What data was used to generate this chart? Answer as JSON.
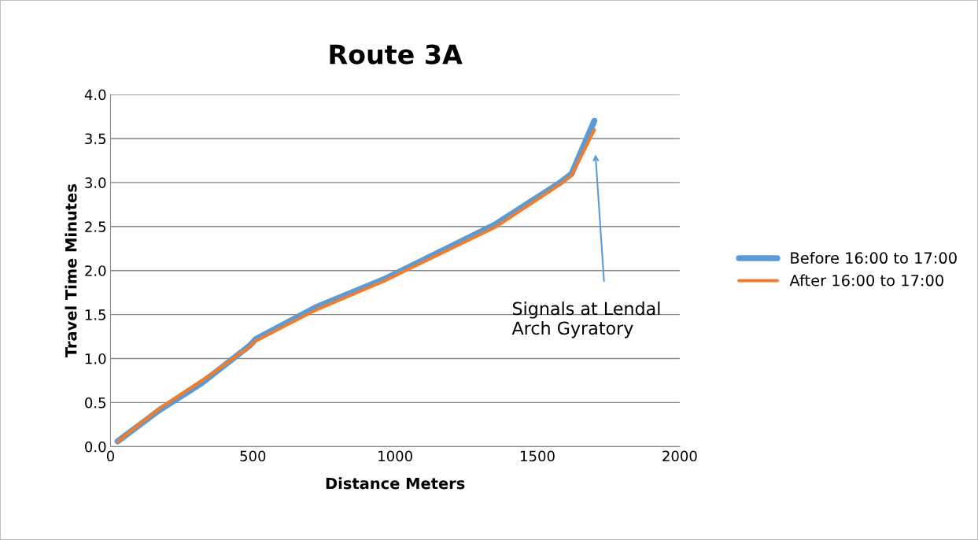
{
  "chart_data": {
    "type": "line",
    "title": "Route 3A",
    "xlabel": "Distance Meters",
    "ylabel": "Travel Time Minutes",
    "xlim": [
      0,
      2000
    ],
    "xticks": [
      0,
      500,
      1000,
      1500,
      2000
    ],
    "ylim": [
      0.0,
      4.0
    ],
    "yticks": [
      {
        "value": 0,
        "label": "0.0"
      },
      {
        "value": 0.5,
        "label": "0.5"
      },
      {
        "value": 1,
        "label": "1.0"
      },
      {
        "value": 1.5,
        "label": "1.5"
      },
      {
        "value": 2,
        "label": "2.0"
      },
      {
        "value": 2.5,
        "label": "2.5"
      },
      {
        "value": 3,
        "label": "3.0"
      },
      {
        "value": 3.5,
        "label": "3.5"
      },
      {
        "value": 4,
        "label": "4.0"
      }
    ],
    "grid": "y",
    "legend": "right",
    "marker": "none",
    "line_style": "solid",
    "series": [
      {
        "name": "Before 16:00 to 17:00",
        "color": "#5b9bd5",
        "x": [
          25,
          170,
          320,
          490,
          510,
          720,
          960,
          1350,
          1580,
          1620,
          1700
        ],
        "values": [
          0.06,
          0.41,
          0.72,
          1.15,
          1.22,
          1.58,
          1.9,
          2.52,
          3.0,
          3.1,
          3.7
        ]
      },
      {
        "name": "After 16:00 to 17:00",
        "color": "#ed7d31",
        "x": [
          25,
          170,
          330,
          490,
          510,
          720,
          960,
          1350,
          1580,
          1620,
          1700
        ],
        "values": [
          0.06,
          0.43,
          0.77,
          1.14,
          1.2,
          1.55,
          1.88,
          2.49,
          2.98,
          3.08,
          3.6
        ]
      }
    ],
    "annotations": [
      "Signals at Lendal\nArch Gyratory"
    ]
  }
}
